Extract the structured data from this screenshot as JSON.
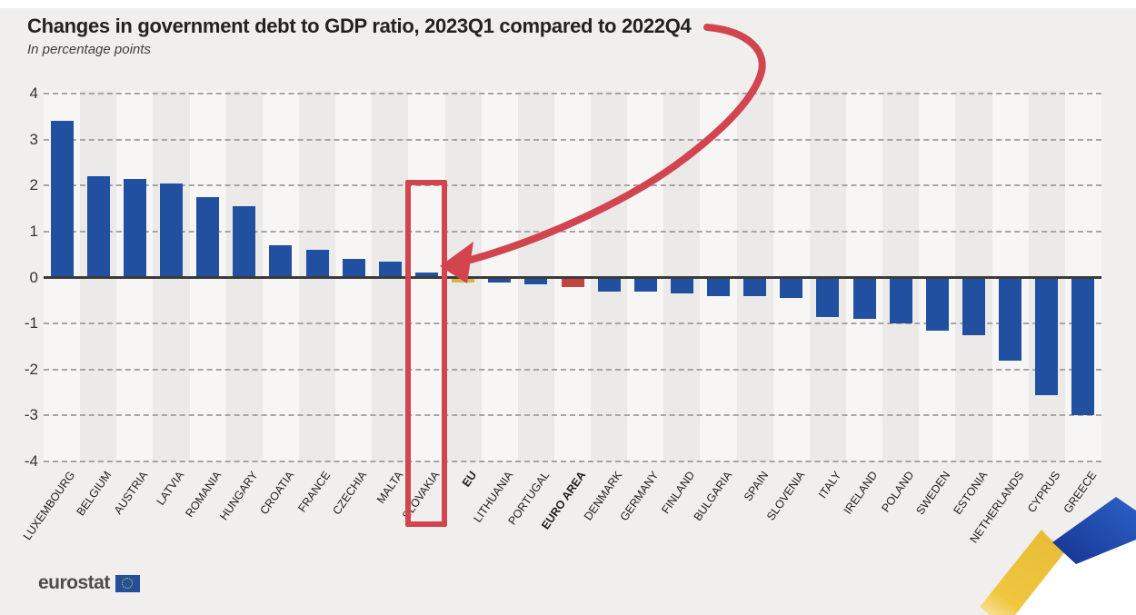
{
  "chart_data": {
    "type": "bar",
    "title": "Changes in government debt to GDP ratio, 2023Q1 compared to 2022Q4",
    "subtitle": "In percentage points",
    "unit": "percentage points",
    "ylim": [
      -4,
      4
    ],
    "yticks": [
      4,
      3,
      2,
      1,
      0,
      -1,
      -2,
      -3,
      -4
    ],
    "grid": "horizontal-dashed",
    "legend": "none",
    "categories": [
      "LUXEMBOURG",
      "BELGIUM",
      "AUSTRIA",
      "LATVIA",
      "ROMANIA",
      "HUNGARY",
      "CROATIA",
      "FRANCE",
      "CZECHIA",
      "MALTA",
      "SLOVAKIA",
      "EU",
      "LITHUANIA",
      "PORTUGAL",
      "EURO AREA",
      "DENMARK",
      "GERMANY",
      "FINLAND",
      "BULGARIA",
      "SPAIN",
      "SLOVENIA",
      "ITALY",
      "IRELAND",
      "POLAND",
      "SWEDEN",
      "ESTONIA",
      "NETHERLANDS",
      "CYPRUS",
      "GREECE"
    ],
    "values": [
      3.4,
      2.2,
      2.15,
      2.05,
      1.75,
      1.55,
      0.7,
      0.6,
      0.4,
      0.35,
      0.1,
      -0.1,
      -0.1,
      -0.15,
      -0.2,
      -0.3,
      -0.3,
      -0.35,
      -0.4,
      -0.4,
      -0.45,
      -0.85,
      -0.9,
      -1.0,
      -1.15,
      -1.25,
      -1.8,
      -2.55,
      -3.0
    ],
    "bold_labels": [
      "EU",
      "EURO AREA"
    ],
    "bar_color_overrides": {
      "EU": "#d8b73c",
      "EURO AREA": "#c4443e"
    }
  },
  "annotation": {
    "highlight_box_category": "SLOVAKIA",
    "arrow_points_to": "SLOVAKIA",
    "color": "#d2444e"
  },
  "colors": {
    "bar_blue": "#2150a0",
    "bar_yellow": "#d8b73c",
    "bar_red": "#c4443e",
    "annotation_red": "#d2444e",
    "background": "#f1efee",
    "zero_line": "#3b3b3b"
  },
  "footer": {
    "logo_text": "eurostat"
  }
}
